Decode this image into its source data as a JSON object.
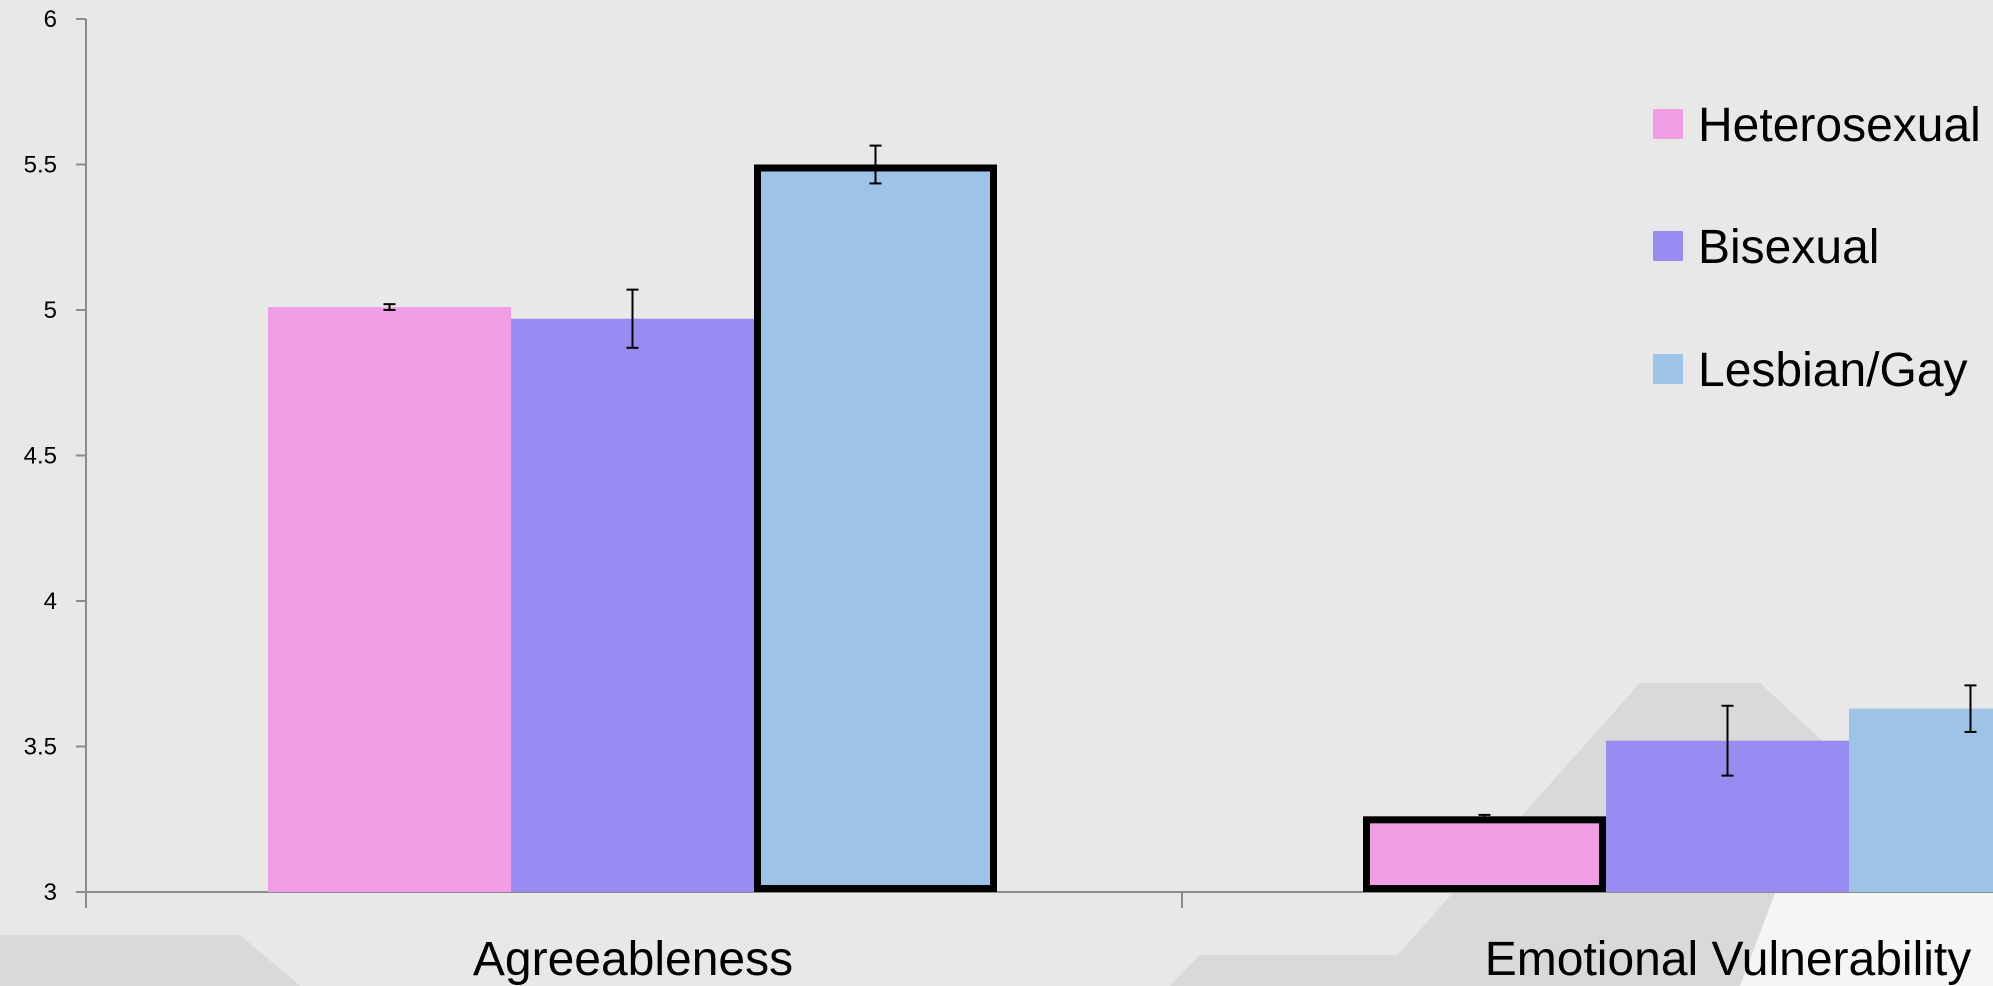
{
  "chart_data": {
    "type": "bar",
    "categories": [
      "Agreeableness",
      "Emotional Vulnerability"
    ],
    "series": [
      {
        "name": "Heterosexual",
        "color": "#f19de6",
        "values": [
          5.01,
          3.26
        ],
        "errors": [
          0.01,
          0.005
        ],
        "highlighted": [
          false,
          true
        ]
      },
      {
        "name": "Bisexual",
        "color": "#988cf2",
        "values": [
          4.97,
          3.52
        ],
        "errors": [
          0.1,
          0.12
        ],
        "highlighted": [
          false,
          false
        ]
      },
      {
        "name": "Lesbian/Gay",
        "color": "#9dc3e6",
        "values": [
          5.5,
          3.63
        ],
        "errors": [
          0.065,
          0.08
        ],
        "highlighted": [
          true,
          false
        ]
      }
    ],
    "ylim": [
      3,
      6
    ],
    "yticks": [
      "3",
      "3.5",
      "4",
      "4.5",
      "5",
      "5.5",
      "6"
    ],
    "grid": false,
    "legend_position": "top-right"
  }
}
